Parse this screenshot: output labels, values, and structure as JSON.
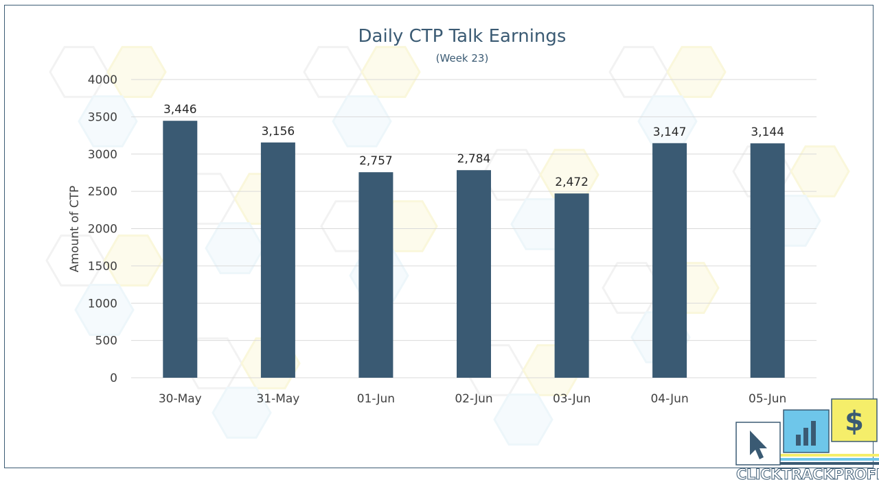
{
  "chart_data": {
    "type": "bar",
    "title": "Daily CTP Talk Earnings",
    "subtitle": "(Week 23)",
    "xlabel": "",
    "ylabel": "Amount of CTP",
    "categories": [
      "30-May",
      "31-May",
      "01-Jun",
      "02-Jun",
      "03-Jun",
      "04-Jun",
      "05-Jun"
    ],
    "values": [
      3446,
      3156,
      2757,
      2784,
      2472,
      3147,
      3144
    ],
    "value_labels": [
      "3,446",
      "3,156",
      "2,757",
      "2,784",
      "2,472",
      "3,147",
      "3,144"
    ],
    "ylim": [
      0,
      4000
    ],
    "yticks": [
      0,
      500,
      1000,
      1500,
      2000,
      2500,
      3000,
      3500,
      4000
    ],
    "grid": true,
    "legend": "none",
    "bar_color": "#3a5a73",
    "gridline_color": "#d9d9d9"
  },
  "logo": {
    "text_part1": "CLICK",
    "text_part2": "TRACK",
    "text_part3": "PROFIT",
    "icons": [
      "cursor-icon",
      "bar-chart-icon",
      "dollar-icon"
    ],
    "colors": {
      "navy": "#3a5a73",
      "blue": "#6ec6ea",
      "yellow": "#f5ee6a"
    }
  }
}
